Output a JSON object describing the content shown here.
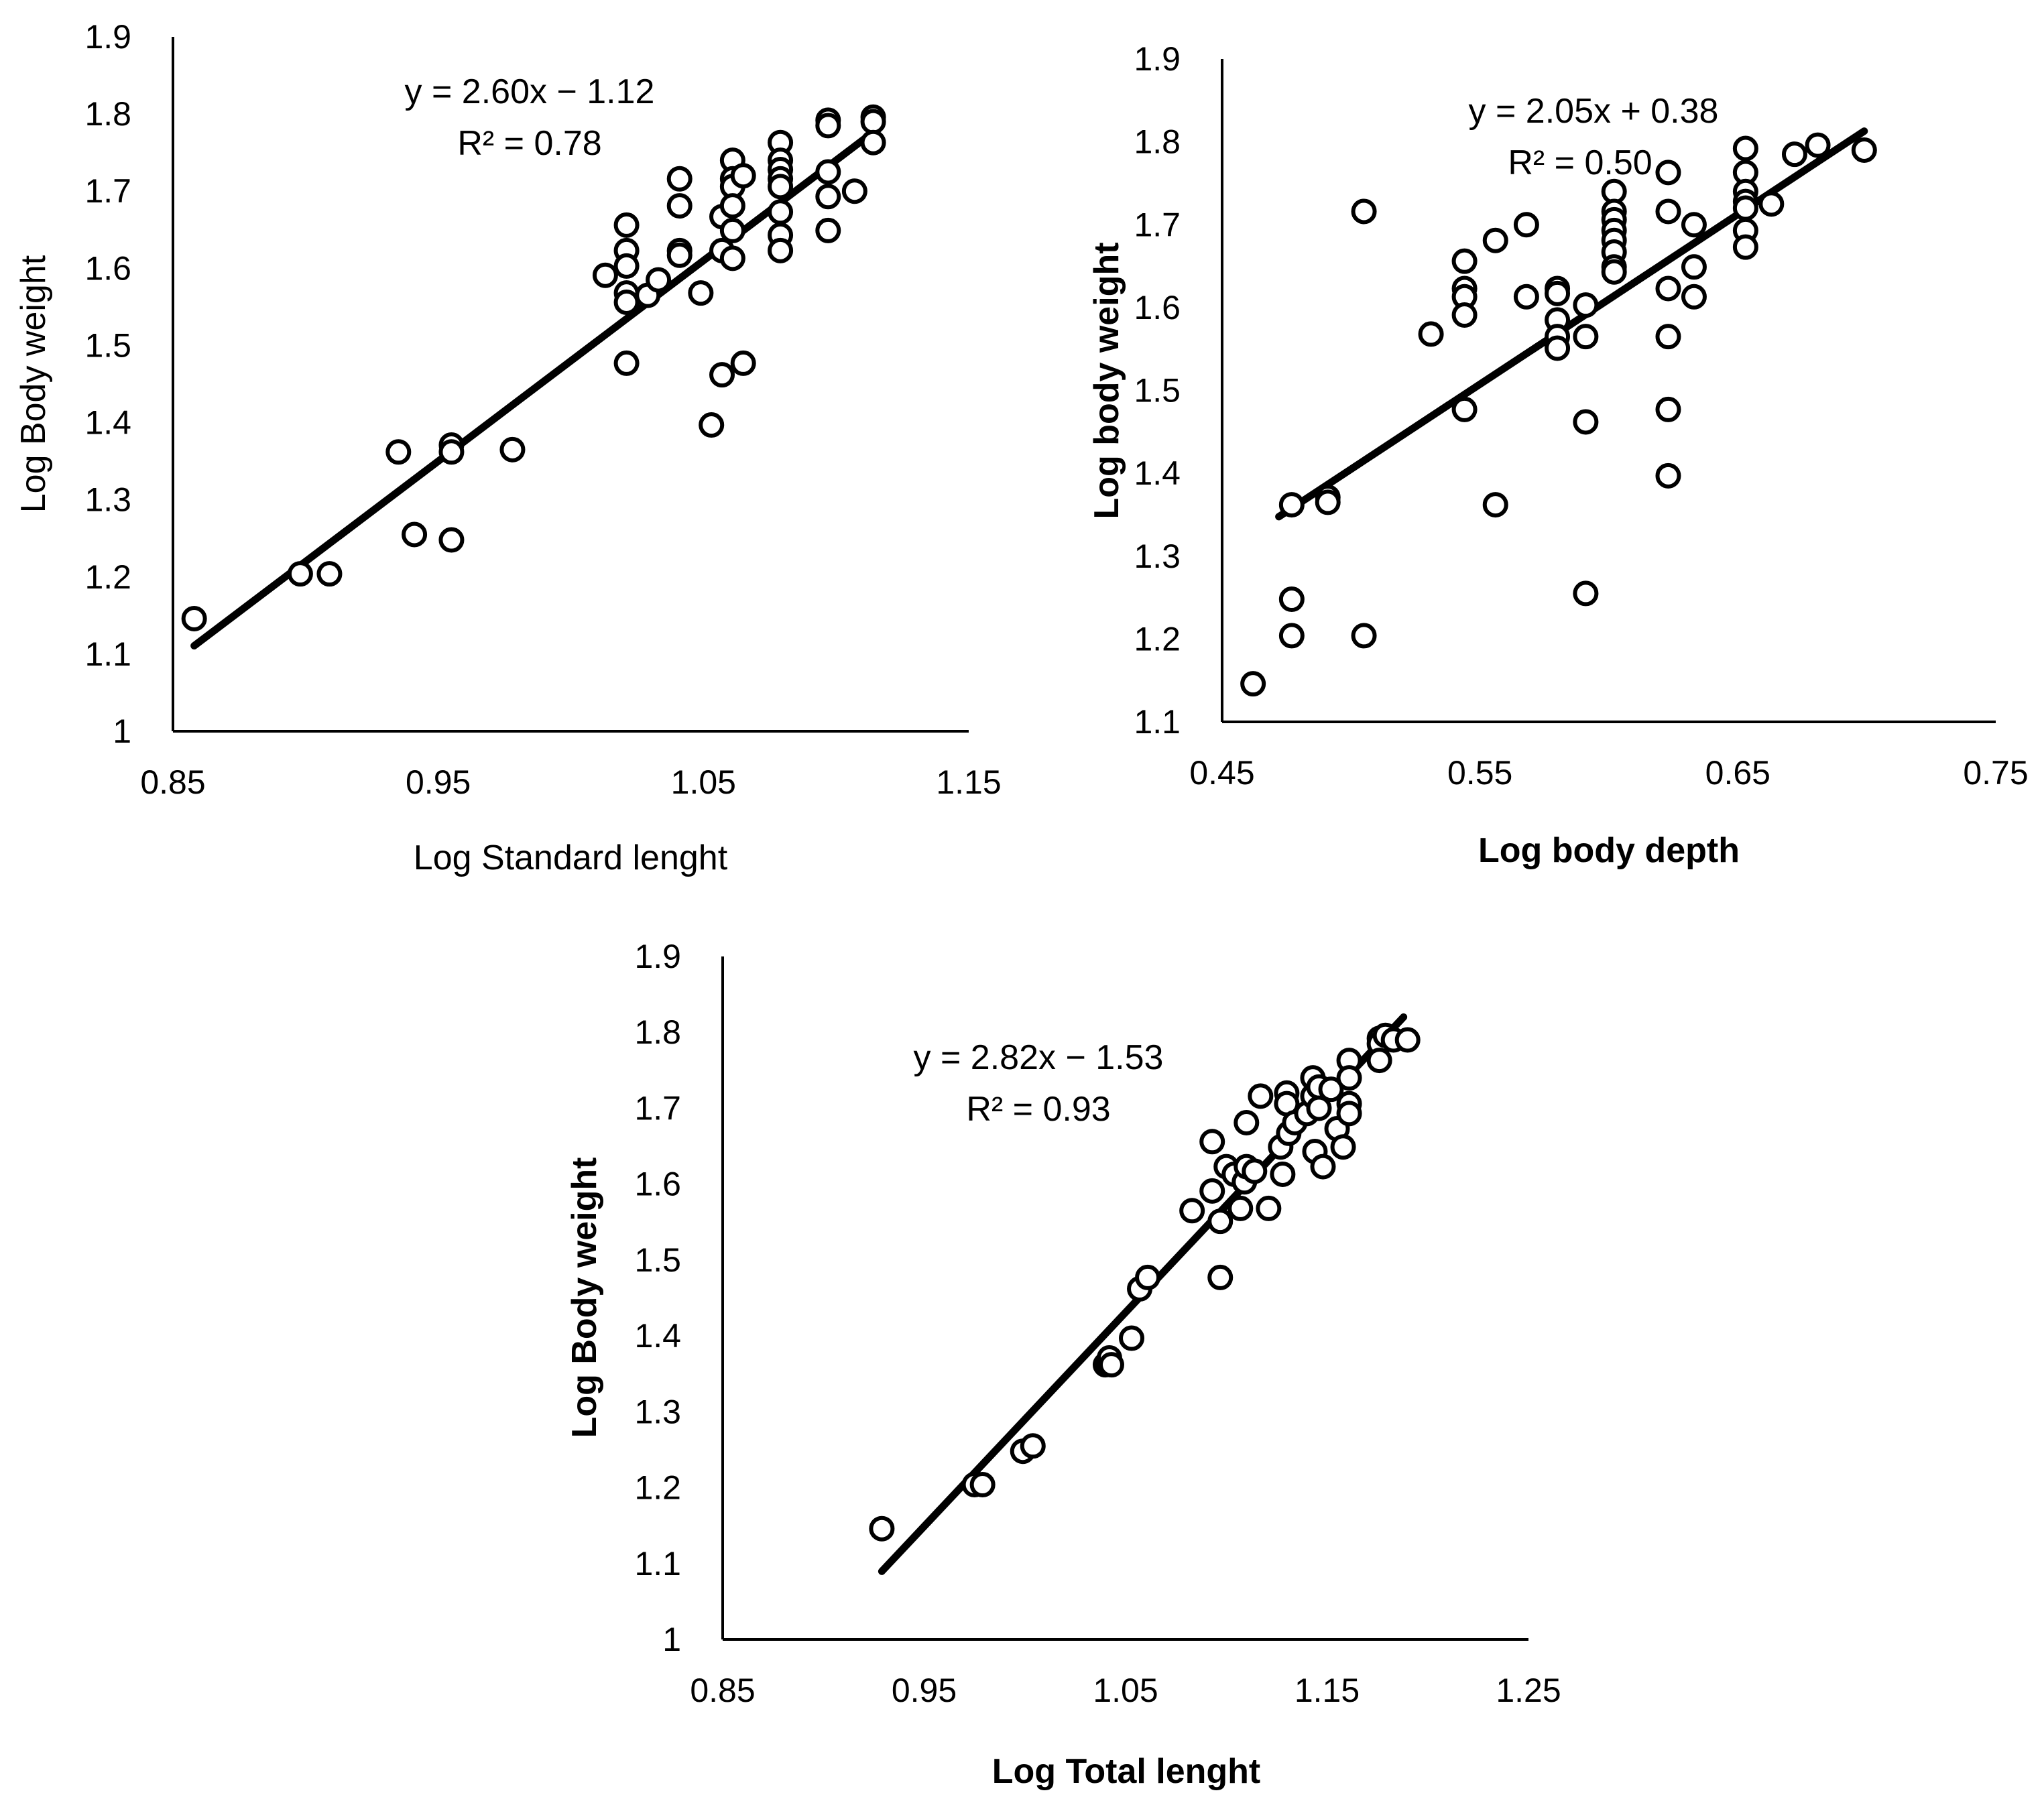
{
  "chart_data": [
    {
      "type": "scatter",
      "xlabel": "Log Standard lenght",
      "ylabel": "Log Body weight",
      "xlabel_bold": false,
      "ylabel_bold": false,
      "xlim": [
        0.85,
        1.15
      ],
      "ylim": [
        1,
        1.9
      ],
      "xticks": [
        "0.85",
        "0.95",
        "1.05",
        "1.15"
      ],
      "yticks": [
        "1",
        "1.1",
        "1.2",
        "1.3",
        "1.4",
        "1.5",
        "1.6",
        "1.7",
        "1.8",
        "1.9"
      ],
      "equation": "y = 2.60x − 1.12",
      "r_squared": "R² = 0.78",
      "trendline": {
        "slope": 2.6,
        "intercept": -1.12,
        "x_range": [
          0.858,
          1.117
        ]
      },
      "series": [
        {
          "name": "data",
          "points": [
            [
              0.858,
              1.146
            ],
            [
              0.898,
              1.204
            ],
            [
              0.909,
              1.204
            ],
            [
              0.935,
              1.362
            ],
            [
              0.941,
              1.255
            ],
            [
              0.955,
              1.371
            ],
            [
              0.955,
              1.362
            ],
            [
              0.955,
              1.248
            ],
            [
              0.978,
              1.365
            ],
            [
              1.013,
              1.591
            ],
            [
              1.021,
              1.656
            ],
            [
              1.021,
              1.623
            ],
            [
              1.021,
              1.603
            ],
            [
              1.021,
              1.568
            ],
            [
              1.021,
              1.556
            ],
            [
              1.021,
              1.477
            ],
            [
              1.029,
              1.565
            ],
            [
              1.033,
              1.585
            ],
            [
              1.041,
              1.716
            ],
            [
              1.041,
              1.681
            ],
            [
              1.041,
              1.623
            ],
            [
              1.041,
              1.617
            ],
            [
              1.049,
              1.568
            ],
            [
              1.053,
              1.397
            ],
            [
              1.057,
              1.667
            ],
            [
              1.057,
              1.623
            ],
            [
              1.057,
              1.462
            ],
            [
              1.061,
              1.74
            ],
            [
              1.061,
              1.716
            ],
            [
              1.061,
              1.706
            ],
            [
              1.061,
              1.681
            ],
            [
              1.061,
              1.649
            ],
            [
              1.061,
              1.613
            ],
            [
              1.065,
              1.72
            ],
            [
              1.065,
              1.477
            ],
            [
              1.079,
              1.763
            ],
            [
              1.079,
              1.74
            ],
            [
              1.079,
              1.728
            ],
            [
              1.079,
              1.716
            ],
            [
              1.079,
              1.706
            ],
            [
              1.079,
              1.673
            ],
            [
              1.079,
              1.643
            ],
            [
              1.079,
              1.623
            ],
            [
              1.097,
              1.792
            ],
            [
              1.097,
              1.785
            ],
            [
              1.097,
              1.725
            ],
            [
              1.097,
              1.693
            ],
            [
              1.097,
              1.649
            ],
            [
              1.107,
              1.7
            ],
            [
              1.114,
              1.796
            ],
            [
              1.114,
              1.79
            ],
            [
              1.114,
              1.763
            ]
          ]
        }
      ]
    },
    {
      "type": "scatter",
      "xlabel": "Log body depth",
      "ylabel": "Log body weight",
      "xlabel_bold": true,
      "ylabel_bold": true,
      "xlim": [
        0.45,
        0.75
      ],
      "ylim": [
        1.1,
        1.9
      ],
      "xticks": [
        "0.45",
        "0.55",
        "0.65",
        "0.75"
      ],
      "yticks": [
        "1.1",
        "1.2",
        "1.3",
        "1.4",
        "1.5",
        "1.6",
        "1.7",
        "1.8",
        "1.9"
      ],
      "equation": "y = 2.05x + 0.38",
      "r_squared": "R² = 0.50",
      "trendline": {
        "slope": 2.05,
        "intercept": 0.38,
        "x_range": [
          0.472,
          0.699
        ]
      },
      "series": [
        {
          "name": "data",
          "points": [
            [
              0.462,
              1.146
            ],
            [
              0.477,
              1.362
            ],
            [
              0.477,
              1.248
            ],
            [
              0.477,
              1.204
            ],
            [
              0.491,
              1.371
            ],
            [
              0.491,
              1.365
            ],
            [
              0.505,
              1.716
            ],
            [
              0.505,
              1.204
            ],
            [
              0.531,
              1.568
            ],
            [
              0.544,
              1.656
            ],
            [
              0.544,
              1.623
            ],
            [
              0.544,
              1.613
            ],
            [
              0.544,
              1.591
            ],
            [
              0.544,
              1.477
            ],
            [
              0.556,
              1.681
            ],
            [
              0.556,
              1.362
            ],
            [
              0.568,
              1.7
            ],
            [
              0.568,
              1.613
            ],
            [
              0.58,
              1.623
            ],
            [
              0.58,
              1.617
            ],
            [
              0.58,
              1.585
            ],
            [
              0.58,
              1.565
            ],
            [
              0.58,
              1.551
            ],
            [
              0.591,
              1.603
            ],
            [
              0.591,
              1.565
            ],
            [
              0.591,
              1.462
            ],
            [
              0.591,
              1.255
            ],
            [
              0.602,
              1.74
            ],
            [
              0.602,
              1.716
            ],
            [
              0.602,
              1.706
            ],
            [
              0.602,
              1.693
            ],
            [
              0.602,
              1.681
            ],
            [
              0.602,
              1.667
            ],
            [
              0.602,
              1.649
            ],
            [
              0.602,
              1.643
            ],
            [
              0.623,
              1.763
            ],
            [
              0.623,
              1.716
            ],
            [
              0.623,
              1.623
            ],
            [
              0.623,
              1.565
            ],
            [
              0.623,
              1.477
            ],
            [
              0.623,
              1.397
            ],
            [
              0.633,
              1.7
            ],
            [
              0.633,
              1.649
            ],
            [
              0.633,
              1.613
            ],
            [
              0.653,
              1.792
            ],
            [
              0.653,
              1.763
            ],
            [
              0.653,
              1.74
            ],
            [
              0.653,
              1.728
            ],
            [
              0.653,
              1.72
            ],
            [
              0.653,
              1.693
            ],
            [
              0.653,
              1.673
            ],
            [
              0.663,
              1.725
            ],
            [
              0.672,
              1.785
            ],
            [
              0.681,
              1.796
            ],
            [
              0.699,
              1.79
            ]
          ]
        }
      ]
    },
    {
      "type": "scatter",
      "xlabel": "Log Total lenght",
      "ylabel": "Log Body weight",
      "xlabel_bold": true,
      "ylabel_bold": true,
      "xlim": [
        0.85,
        1.25
      ],
      "ylim": [
        1,
        1.9
      ],
      "xticks": [
        "0.85",
        "0.95",
        "1.05",
        "1.15",
        "1.25"
      ],
      "yticks": [
        "1",
        "1.1",
        "1.2",
        "1.3",
        "1.4",
        "1.5",
        "1.6",
        "1.7",
        "1.8",
        "1.9"
      ],
      "equation": "y = 2.82x − 1.53",
      "r_squared": "R² = 0.93",
      "trendline": {
        "slope": 2.82,
        "intercept": -1.53,
        "x_range": [
          0.929,
          1.188
        ]
      },
      "series": [
        {
          "name": "data",
          "points": [
            [
              0.929,
              1.146
            ],
            [
              0.975,
              1.204
            ],
            [
              0.979,
              1.204
            ],
            [
              0.999,
              1.248
            ],
            [
              1.004,
              1.255
            ],
            [
              1.04,
              1.362
            ],
            [
              1.041,
              1.365
            ],
            [
              1.042,
              1.371
            ],
            [
              1.043,
              1.362
            ],
            [
              1.053,
              1.397
            ],
            [
              1.057,
              1.462
            ],
            [
              1.061,
              1.477
            ],
            [
              1.097,
              1.477
            ],
            [
              1.083,
              1.565
            ],
            [
              1.093,
              1.591
            ],
            [
              1.093,
              1.656
            ],
            [
              1.097,
              1.551
            ],
            [
              1.1,
              1.623
            ],
            [
              1.104,
              1.613
            ],
            [
              1.107,
              1.568
            ],
            [
              1.109,
              1.603
            ],
            [
              1.11,
              1.681
            ],
            [
              1.11,
              1.623
            ],
            [
              1.114,
              1.617
            ],
            [
              1.117,
              1.716
            ],
            [
              1.121,
              1.568
            ],
            [
              1.127,
              1.649
            ],
            [
              1.128,
              1.613
            ],
            [
              1.13,
              1.72
            ],
            [
              1.13,
              1.706
            ],
            [
              1.131,
              1.667
            ],
            [
              1.134,
              1.681
            ],
            [
              1.14,
              1.693
            ],
            [
              1.143,
              1.74
            ],
            [
              1.143,
              1.716
            ],
            [
              1.144,
              1.643
            ],
            [
              1.146,
              1.728
            ],
            [
              1.146,
              1.7
            ],
            [
              1.148,
              1.623
            ],
            [
              1.152,
              1.725
            ],
            [
              1.155,
              1.673
            ],
            [
              1.158,
              1.649
            ],
            [
              1.161,
              1.763
            ],
            [
              1.161,
              1.74
            ],
            [
              1.161,
              1.706
            ],
            [
              1.161,
              1.693
            ],
            [
              1.176,
              1.792
            ],
            [
              1.176,
              1.785
            ],
            [
              1.176,
              1.763
            ],
            [
              1.179,
              1.796
            ],
            [
              1.183,
              1.79
            ],
            [
              1.19,
              1.79
            ]
          ]
        }
      ]
    }
  ]
}
